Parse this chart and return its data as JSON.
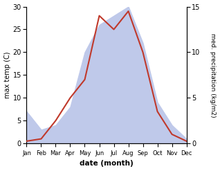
{
  "months": [
    "Jan",
    "Feb",
    "Mar",
    "Apr",
    "May",
    "Jun",
    "Jul",
    "Aug",
    "Sep",
    "Oct",
    "Nov",
    "Dec"
  ],
  "temp": [
    0.5,
    1.0,
    5.0,
    10.0,
    14.0,
    28.0,
    25.0,
    29.0,
    20.0,
    7.0,
    2.0,
    0.5
  ],
  "precip": [
    3.5,
    1.5,
    2.0,
    4.0,
    10.0,
    13.0,
    14.0,
    15.0,
    11.0,
    4.5,
    2.0,
    0.5
  ],
  "temp_color": "#c0392b",
  "precip_fill_color": "#bfc9ea",
  "temp_ylim": [
    0,
    30
  ],
  "precip_ylim": [
    0,
    15
  ],
  "temp_yticks": [
    0,
    5,
    10,
    15,
    20,
    25,
    30
  ],
  "precip_yticks": [
    0,
    5,
    10,
    15
  ],
  "xlabel": "date (month)",
  "ylabel_left": "max temp (C)",
  "ylabel_right": "med. precipitation (kg/m2)",
  "bg_color": "#ffffff",
  "temp_lw": 1.5
}
